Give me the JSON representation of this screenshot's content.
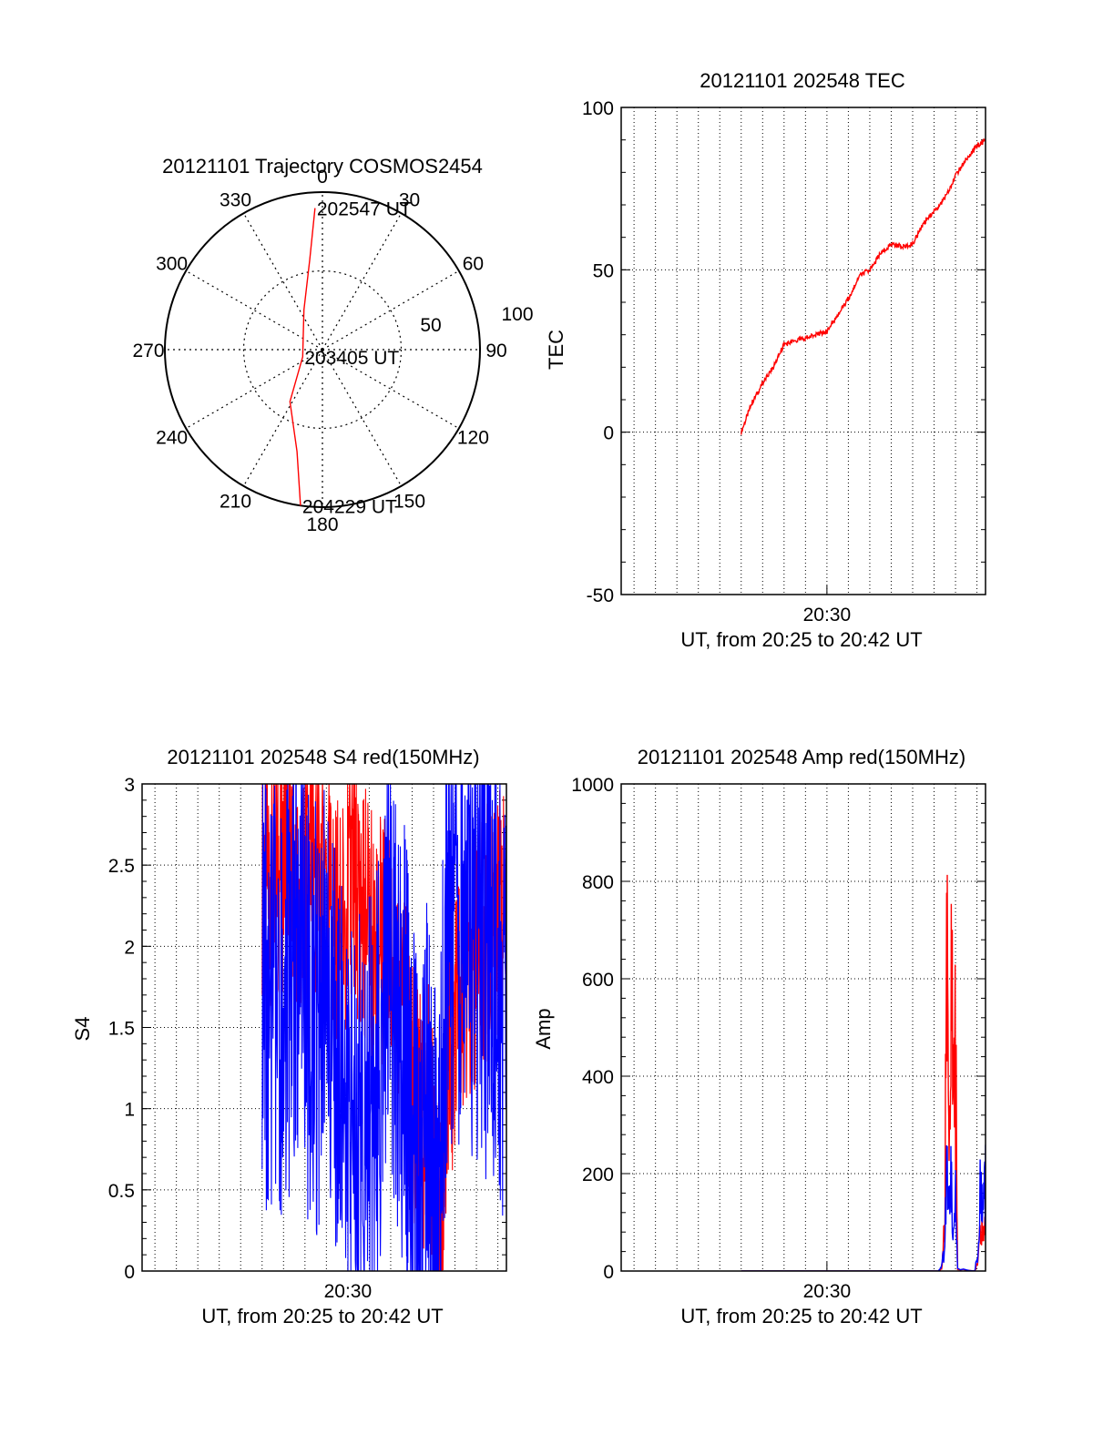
{
  "colors": {
    "red": "#ff0000",
    "blue": "#0000ff",
    "axis": "#000000",
    "grid": "#000000"
  },
  "chart_data": [
    {
      "type": "polar",
      "title": "20121101 Trajectory COSMOS2454",
      "angle_labels": [
        "0",
        "30",
        "60",
        "90",
        "120",
        "150",
        "180",
        "210",
        "240",
        "270",
        "300",
        "330"
      ],
      "ring_labels": [
        "50",
        "100"
      ],
      "elevation_range": [
        0,
        100
      ],
      "grid": true,
      "series": [
        {
          "color": "#ff0000",
          "points": [
            {
              "az": 357,
              "zd": 81
            },
            {
              "az": 352,
              "zd": 52
            },
            {
              "az": 335,
              "zd": 25
            },
            {
              "az": 250,
              "zd": 12
            },
            {
              "az": 212,
              "zd": 35
            },
            {
              "az": 194,
              "zd": 60
            },
            {
              "az": 188,
              "zd": 90
            }
          ]
        }
      ],
      "annotations": [
        {
          "text": "202547 UT",
          "az": 357,
          "zd": 81
        },
        {
          "text": "203405 UT",
          "az": 250,
          "zd": 12
        },
        {
          "text": "204229 UT",
          "az": 188,
          "zd": 90
        }
      ]
    },
    {
      "type": "line",
      "title": "20121101 202548 TEC",
      "xlabel": "UT, from 20:25 to 20:42 UT",
      "ylabel": "TEC",
      "xlim": [
        20.4,
        37.4
      ],
      "ylim": [
        -50,
        100
      ],
      "yticks": [
        "-50",
        "0",
        "50",
        "100"
      ],
      "xticks": [
        {
          "value": 30,
          "label": "20:30"
        }
      ],
      "grid": true,
      "series": [
        {
          "color": "#ff0000",
          "x": [
            26.0,
            26.5,
            27.0,
            27.5,
            28.0,
            28.5,
            29.0,
            29.5,
            30.0,
            30.5,
            31.0,
            31.5,
            32.0,
            32.5,
            33.0,
            33.5,
            34.0,
            34.5,
            35.0,
            35.5,
            36.0,
            36.5,
            37.0,
            37.4
          ],
          "y": [
            0,
            9,
            15,
            20,
            27,
            28,
            29,
            30,
            31,
            36,
            41,
            48,
            50,
            55,
            58,
            57,
            58,
            64,
            68,
            72,
            79,
            84,
            88,
            90
          ]
        }
      ]
    },
    {
      "type": "line",
      "title": "20121101 202548 S4 red(150MHz)",
      "xlabel": "UT, from 20:25 to 20:42 UT",
      "ylabel": "S4",
      "xlim": [
        20.4,
        37.4
      ],
      "ylim": [
        0,
        3
      ],
      "yticks": [
        "0",
        "0.5",
        "1",
        "1.5",
        "2",
        "2.5",
        "3"
      ],
      "xticks": [
        {
          "value": 30,
          "label": "20:30"
        }
      ],
      "grid": true,
      "series": [
        {
          "color": "#ff0000",
          "x": [
            26.0,
            26.6,
            27.2,
            27.8,
            28.4,
            29.0,
            29.6,
            30.2,
            30.8,
            31.4,
            32.0,
            32.6,
            33.0,
            33.4,
            33.8,
            34.2,
            34.6,
            35.0,
            35.6,
            36.2,
            36.8,
            37.4
          ],
          "y": [
            2.5,
            2.4,
            2.6,
            2.2,
            2.5,
            2.3,
            2.1,
            2.4,
            2.2,
            2.0,
            2.1,
            1.6,
            1.1,
            0.9,
            1.0,
            0.2,
            1.2,
            1.5,
            1.8,
            2.0,
            2.2,
            2.3
          ]
        },
        {
          "color": "#0000ff",
          "x": [
            26.0,
            26.6,
            27.2,
            27.8,
            28.4,
            29.0,
            29.6,
            30.2,
            30.8,
            31.4,
            32.0,
            32.6,
            33.0,
            33.4,
            33.8,
            34.2,
            34.6,
            35.0,
            35.6,
            36.2,
            36.8,
            37.4
          ],
          "y": [
            1.8,
            1.6,
            1.7,
            1.9,
            1.5,
            1.6,
            1.4,
            1.0,
            0.8,
            1.2,
            1.9,
            1.4,
            0.9,
            0.2,
            1.2,
            0.1,
            2.0,
            2.2,
            2.1,
            2.0,
            1.9,
            1.6
          ]
        }
      ]
    },
    {
      "type": "line",
      "title": "20121101 202548 Amp red(150MHz)",
      "xlabel": "UT, from 20:25 to 20:42 UT",
      "ylabel": "Amp",
      "xlim": [
        20.4,
        37.4
      ],
      "ylim": [
        0,
        1000
      ],
      "yticks": [
        "0",
        "200",
        "400",
        "600",
        "800",
        "1000"
      ],
      "xticks": [
        {
          "value": 30,
          "label": "20:30"
        }
      ],
      "grid": true,
      "series": [
        {
          "color": "#ff0000",
          "x": [
            26.0,
            35.2,
            35.35,
            35.5,
            35.6,
            35.7,
            35.8,
            35.9,
            36.0,
            36.1,
            36.9,
            37.05,
            37.2,
            37.3,
            37.4,
            37.5,
            37.6,
            42.0
          ],
          "y": [
            0,
            0,
            5,
            120,
            920,
            250,
            790,
            400,
            560,
            5,
            0,
            30,
            120,
            90,
            110,
            70,
            0,
            0
          ]
        },
        {
          "color": "#0000ff",
          "x": [
            26.0,
            35.2,
            35.35,
            35.5,
            35.6,
            35.7,
            35.8,
            35.9,
            36.0,
            36.1,
            36.9,
            37.05,
            37.2,
            37.3,
            37.4,
            37.5,
            37.6,
            42.0
          ],
          "y": [
            0,
            0,
            10,
            60,
            260,
            150,
            230,
            110,
            180,
            5,
            0,
            50,
            250,
            130,
            240,
            160,
            0,
            0
          ]
        }
      ]
    }
  ]
}
